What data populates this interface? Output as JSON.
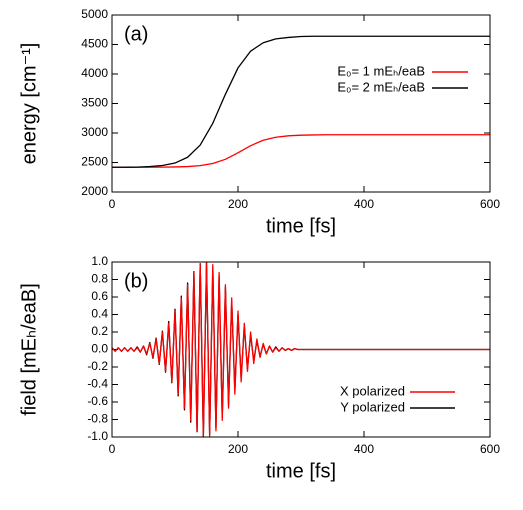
{
  "chart_data": [
    {
      "type": "line",
      "annotation": "(a)",
      "x_label": "time [fs]",
      "y_label": "energy [cm⁻¹]",
      "xlim": [
        0,
        600
      ],
      "xticks": [
        0,
        200,
        400,
        600
      ],
      "ylim": [
        2000,
        5000
      ],
      "yticks": [
        2000,
        2500,
        3000,
        3500,
        4000,
        4500,
        5000
      ],
      "legend": "upper right",
      "x": [
        0,
        20,
        40,
        60,
        80,
        100,
        120,
        140,
        160,
        180,
        200,
        220,
        240,
        260,
        280,
        300,
        320,
        340,
        360,
        380,
        400,
        420,
        440,
        460,
        480,
        500,
        520,
        540,
        560,
        580,
        600
      ],
      "series": [
        {
          "name": "E₀= 1 mEₕ/eaB",
          "color": "#ff0000",
          "values": [
            2420,
            2420,
            2420,
            2420,
            2421,
            2425,
            2431,
            2447,
            2483,
            2554,
            2664,
            2785,
            2877,
            2928,
            2952,
            2963,
            2967,
            2970,
            2970,
            2970,
            2970,
            2970,
            2970,
            2970,
            2970,
            2970,
            2970,
            2970,
            2970,
            2970,
            2970
          ]
        },
        {
          "name": "E₀= 2 mEₕ/eaB",
          "color": "#000000",
          "values": [
            2420,
            2420,
            2422,
            2432,
            2449,
            2491,
            2589,
            2795,
            3165,
            3656,
            4103,
            4387,
            4530,
            4595,
            4620,
            4635,
            4640,
            4640,
            4640,
            4640,
            4640,
            4640,
            4640,
            4640,
            4640,
            4640,
            4640,
            4640,
            4640,
            4640,
            4640
          ]
        }
      ]
    },
    {
      "type": "line",
      "annotation": "(b)",
      "x_label": "time [fs]",
      "y_label": "field [mEₕ/eaB]",
      "xlim": [
        0,
        600
      ],
      "xticks": [
        0,
        200,
        400,
        600
      ],
      "ylim": [
        -1.0,
        1.0
      ],
      "yticks": [
        {
          "value": -1.0,
          "label": "-1.0"
        },
        {
          "value": -0.8,
          "label": "-0.8"
        },
        {
          "value": -0.6,
          "label": "-0.6"
        },
        {
          "value": -0.4,
          "label": "-0.4"
        },
        {
          "value": -0.2,
          "label": "-0.2"
        },
        {
          "value": 0.0,
          "label": "0.0"
        },
        {
          "value": 0.2,
          "label": "0.2"
        },
        {
          "value": 0.4,
          "label": "0.4"
        },
        {
          "value": 0.6,
          "label": "0.6"
        },
        {
          "value": 0.8,
          "label": "0.8"
        },
        {
          "value": 1.0,
          "label": "1.0"
        }
      ],
      "legend": "lower right",
      "x": [
        0,
        5,
        10,
        15,
        20,
        25,
        30,
        35,
        40,
        45,
        50,
        55,
        60,
        65,
        70,
        75,
        80,
        85,
        90,
        95,
        100,
        105,
        110,
        115,
        120,
        125,
        130,
        135,
        140,
        145,
        150,
        155,
        160,
        165,
        170,
        175,
        180,
        185,
        190,
        195,
        200,
        205,
        210,
        215,
        220,
        225,
        230,
        235,
        240,
        245,
        250,
        255,
        260,
        265,
        270,
        275,
        280,
        285,
        290,
        295,
        300,
        600
      ],
      "series": [
        {
          "name": "Y polarized",
          "color": "#000000",
          "values": [
            0.02,
            -0.02,
            0.02,
            -0.02,
            0.02,
            -0.02,
            0.02,
            -0.02,
            0.03,
            -0.03,
            0.04,
            -0.06,
            0.08,
            -0.1,
            0.13,
            -0.17,
            0.21,
            -0.26,
            0.32,
            -0.38,
            0.46,
            -0.53,
            0.61,
            -0.69,
            0.76,
            -0.83,
            0.89,
            -0.94,
            0.98,
            -1.0,
            0.99,
            -0.97,
            0.94,
            -0.9,
            0.84,
            -0.78,
            0.71,
            -0.63,
            0.55,
            -0.47,
            0.4,
            -0.33,
            0.27,
            -0.22,
            0.17,
            -0.13,
            0.1,
            -0.08,
            0.06,
            -0.05,
            0.04,
            -0.03,
            0.03,
            -0.02,
            0.02,
            -0.01,
            0.01,
            -0.01,
            0.01,
            0,
            0,
            0
          ]
        },
        {
          "name": "X polarized",
          "color": "#ff0000",
          "values": [
            0.02,
            -0.02,
            0.02,
            -0.02,
            0.02,
            -0.02,
            0.02,
            -0.02,
            0.02,
            -0.03,
            0.04,
            -0.05,
            0.07,
            -0.09,
            0.12,
            -0.16,
            0.2,
            -0.25,
            0.3,
            -0.37,
            0.44,
            -0.51,
            0.59,
            -0.67,
            0.74,
            -0.81,
            0.88,
            -0.93,
            0.97,
            -0.99,
            1.0,
            -0.99,
            0.97,
            -0.93,
            0.88,
            -0.81,
            0.74,
            -0.67,
            0.59,
            -0.51,
            0.44,
            -0.37,
            0.3,
            -0.25,
            0.2,
            -0.16,
            0.12,
            -0.09,
            0.07,
            -0.05,
            0.04,
            -0.03,
            0.02,
            -0.02,
            0.02,
            -0.01,
            0.01,
            -0.01,
            0.01,
            0,
            0,
            0
          ]
        }
      ]
    }
  ]
}
